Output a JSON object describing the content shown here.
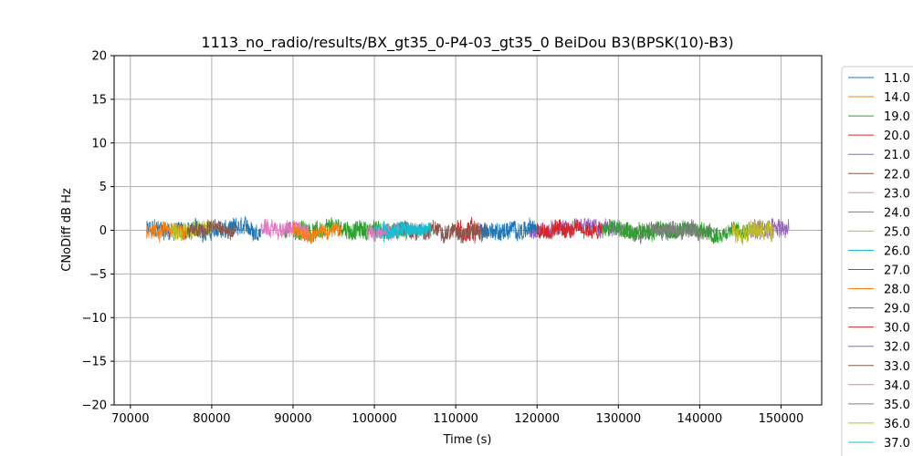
{
  "chart_data": {
    "type": "line",
    "title": "1113_no_radio/results/BX_gt35_0-P4-03_gt35_0 BeiDou B3(BPSK(10)-B3)",
    "xlabel": "Time (s)",
    "ylabel": "CNoDiff dB Hz",
    "xlim": [
      68000,
      155000
    ],
    "ylim": [
      -20,
      20
    ],
    "xticks": [
      70000,
      80000,
      90000,
      100000,
      110000,
      120000,
      130000,
      140000,
      150000
    ],
    "yticks": [
      -20,
      -15,
      -10,
      -5,
      0,
      5,
      10,
      15,
      20
    ],
    "grid": true,
    "legend_position": "right-outside",
    "series": [
      {
        "name": "11.0",
        "color": "#1f77b4",
        "x_range": [
          72000,
          86000
        ],
        "amplitude": 1.0
      },
      {
        "name": "14.0",
        "color": "#ff7f0e",
        "x_range": [
          72000,
          77000
        ],
        "amplitude": 0.9
      },
      {
        "name": "19.0",
        "color": "#2ca02c",
        "x_range": [
          89000,
          104000
        ],
        "amplitude": 1.0
      },
      {
        "name": "20.0",
        "color": "#d62728",
        "x_range": [
          110000,
          113000
        ],
        "amplitude": 1.3
      },
      {
        "name": "21.0",
        "color": "#9467bd",
        "x_range": [
          119000,
          130000
        ],
        "amplitude": 0.9
      },
      {
        "name": "22.0",
        "color": "#8c564b",
        "x_range": [
          103000,
          114000
        ],
        "amplitude": 0.9
      },
      {
        "name": "23.0",
        "color": "#e377c2",
        "x_range": [
          86000,
          92000
        ],
        "amplitude": 0.9
      },
      {
        "name": "24.0",
        "color": "#7f7f7f",
        "x_range": [
          130000,
          142000
        ],
        "amplitude": 0.9
      },
      {
        "name": "25.0",
        "color": "#bcbd22",
        "x_range": [
          75000,
          80000
        ],
        "amplitude": 1.0
      },
      {
        "name": "26.0",
        "color": "#17becf",
        "x_range": [
          100000,
          106000
        ],
        "amplitude": 0.8
      },
      {
        "name": "27.0",
        "color": "#1f77b4",
        "x_range": [
          113000,
          120000
        ],
        "amplitude": 1.0
      },
      {
        "name": "28.0",
        "color": "#ff7f0e",
        "x_range": [
          90000,
          96000
        ],
        "amplitude": 0.8
      },
      {
        "name": "29.0",
        "color": "#2ca02c",
        "x_range": [
          128000,
          146000
        ],
        "amplitude": 0.9
      },
      {
        "name": "30.0",
        "color": "#d62728",
        "x_range": [
          120000,
          128000
        ],
        "amplitude": 0.9
      },
      {
        "name": "32.0",
        "color": "#9467bd",
        "x_range": [
          146000,
          151000
        ],
        "amplitude": 1.2
      },
      {
        "name": "33.0",
        "color": "#8c564b",
        "x_range": [
          77000,
          83000
        ],
        "amplitude": 0.8
      },
      {
        "name": "34.0",
        "color": "#e377c2",
        "x_range": [
          99000,
          103000
        ],
        "amplitude": 0.8
      },
      {
        "name": "35.0",
        "color": "#7f7f7f",
        "x_range": [
          134000,
          140000
        ],
        "amplitude": 0.8
      },
      {
        "name": "36.0",
        "color": "#bcbd22",
        "x_range": [
          144000,
          149000
        ],
        "amplitude": 1.1
      },
      {
        "name": "37.0",
        "color": "#17becf",
        "x_range": [
          101000,
          107000
        ],
        "amplitude": 0.7
      }
    ]
  }
}
